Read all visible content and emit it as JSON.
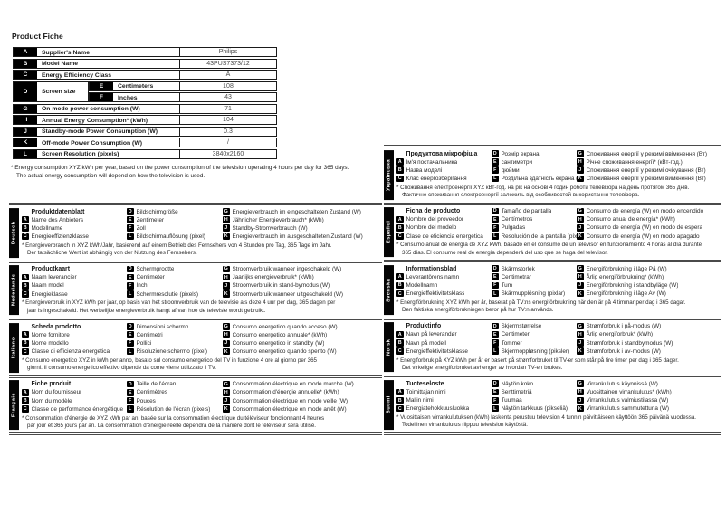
{
  "page": {
    "title": "Product Fiche"
  },
  "fiche_table": {
    "rows": [
      {
        "key": "A",
        "label": "Supplier's Name",
        "value": "Philips"
      },
      {
        "key": "B",
        "label": "Model Name",
        "value": "43PUS7373/12"
      },
      {
        "key": "C",
        "label": "Energy Efficiency Class",
        "value": "A"
      },
      {
        "key": "D",
        "label": "Screen size",
        "sub": [
          {
            "key": "E",
            "label": "Centimeters",
            "value": "108"
          },
          {
            "key": "F",
            "label": "Inches",
            "value": "43"
          }
        ]
      },
      {
        "key": "G",
        "label": "On mode power consumption (W)",
        "value": "71"
      },
      {
        "key": "H",
        "label": "Annual Energy Consumption* (kWh)",
        "value": "104"
      },
      {
        "key": "J",
        "label": "Standby-mode Power Consumption (W)",
        "value": "0.3"
      },
      {
        "key": "K",
        "label": "Off-mode Power Consumption (W)",
        "value": "/"
      },
      {
        "key": "L",
        "label": "Screen Resolution (pixels)",
        "value": "3840x2160"
      }
    ]
  },
  "footnote": {
    "line1": "* Energy consumption XYZ kWh per year, based on the power consumption of the television operating 4 hours per day for 365 days.",
    "line2": "The actual energy consumption will depend on how the television is used."
  },
  "sections": {
    "left": [
      {
        "lang": "Deutsch",
        "title": "Produktdatenblatt",
        "col1": [
          {
            "key": "A",
            "label": "Name des Anbieters"
          },
          {
            "key": "B",
            "label": "Modellname"
          },
          {
            "key": "C",
            "label": "Energieeffizienzklasse"
          }
        ],
        "col2": [
          {
            "key": "D",
            "label": "Bildschirmgröße"
          },
          {
            "key": "E",
            "label": "Zentimeter"
          },
          {
            "key": "F",
            "label": "Zoll"
          },
          {
            "key": "L",
            "label": "Bildschirmauflösung (pixel)"
          }
        ],
        "col3": [
          {
            "key": "G",
            "label": "Energieverbrauch im eingeschalteten Zustand (W)"
          },
          {
            "key": "H",
            "label": "Jährlicher Energieverbrauch* (kWh)"
          },
          {
            "key": "J",
            "label": "Standby-Stromverbrauch (W)"
          },
          {
            "key": "K",
            "label": "Energieverbrauch im ausgeschalteten Zustand (W)"
          }
        ],
        "fn": [
          "* Energieverbrauch in XYZ kWh/Jahr, basierend auf einem Betrieb des Fernsehers von 4 Stunden pro Tag, 365 Tage im Jahr.",
          "Der tatsächliche Wert ist abhängig von der Nutzung des Fernsehers."
        ]
      },
      {
        "lang": "Nederlands",
        "title": "Productkaart",
        "col1": [
          {
            "key": "A",
            "label": "Naam leverancier"
          },
          {
            "key": "B",
            "label": "Naam model"
          },
          {
            "key": "C",
            "label": "Energieklasse"
          }
        ],
        "col2": [
          {
            "key": "D",
            "label": "Schermgrootte"
          },
          {
            "key": "E",
            "label": "Centimeter"
          },
          {
            "key": "F",
            "label": "Inch"
          },
          {
            "key": "L",
            "label": "Schermresolutie (pixels)"
          }
        ],
        "col3": [
          {
            "key": "G",
            "label": "Stroomverbruik wanneer ingeschakeld (W)"
          },
          {
            "key": "H",
            "label": "Jaarlijks energieverbruik* (kWh)"
          },
          {
            "key": "J",
            "label": "Stroomverbruik in stand-bymodus (W)"
          },
          {
            "key": "K",
            "label": "Stroomverbruik wanneer uitgeschakeld (W)"
          }
        ],
        "fn": [
          "* Energieverbruik in XYZ kWh per jaar, op basis van het stroomverbruik van de televisie als deze 4 uur per dag, 365 dagen per",
          "jaar is ingeschakeld. Het werkelijke energieverbruik hangt af van hoe de televisie wordt gebruikt."
        ]
      },
      {
        "lang": "Italiano",
        "title": "Scheda prodotto",
        "col1": [
          {
            "key": "A",
            "label": "Nome fornitore"
          },
          {
            "key": "B",
            "label": "Nome modello"
          },
          {
            "key": "C",
            "label": "Classe di efficienza energetica"
          }
        ],
        "col2": [
          {
            "key": "D",
            "label": "Dimensioni schermo"
          },
          {
            "key": "E",
            "label": "Centimetri"
          },
          {
            "key": "F",
            "label": "Pollici"
          },
          {
            "key": "L",
            "label": "Risoluzione schermo (pixel)"
          }
        ],
        "col3": [
          {
            "key": "G",
            "label": "Consumo energetico quando acceso (W)"
          },
          {
            "key": "H",
            "label": "Consumo energetico annuale* (kWh)"
          },
          {
            "key": "J",
            "label": "Consumo energetico in standby (W)"
          },
          {
            "key": "K",
            "label": "Consumo energetico quando spento (W)"
          }
        ],
        "fn": [
          "* Consumo energetico XYZ in kWh per anno, basato sul consumo energetico del TV in funzione 4 ore al giorno per 365",
          "giorni. Il consumo energetico effettivo dipende da come viene utilizzato il TV."
        ]
      },
      {
        "lang": "Français",
        "title": "Fiche produit",
        "col1": [
          {
            "key": "A",
            "label": "Nom du fournisseur"
          },
          {
            "key": "B",
            "label": "Nom du modèle"
          },
          {
            "key": "C",
            "label": "Classe de performance énergétique"
          }
        ],
        "col2": [
          {
            "key": "D",
            "label": "Taille de l'écran"
          },
          {
            "key": "E",
            "label": "Centimètres"
          },
          {
            "key": "F",
            "label": "Pouces"
          },
          {
            "key": "L",
            "label": "Résolution de l'écran (pixels)"
          }
        ],
        "col3": [
          {
            "key": "G",
            "label": "Consommation électrique en mode marche (W)"
          },
          {
            "key": "H",
            "label": "Consommation d'énergie annuelle* (kWh)"
          },
          {
            "key": "J",
            "label": "Consommation électrique en mode veille (W)"
          },
          {
            "key": "K",
            "label": "Consommation électrique en mode arrêt (W)"
          }
        ],
        "fn": [
          "* Consommation d'énergie de XYZ kWh par an, basée sur la consommation électrique du téléviseur fonctionnant 4 heures",
          "par jour et 365 jours par an. La consommation d'énergie réelle dépendra de la manière dont le téléviseur sera utilisé."
        ]
      }
    ],
    "right": [
      {
        "lang": "Українська",
        "title": "Продуктова мікрофіша",
        "col1": [
          {
            "key": "A",
            "label": "Ім'я постачальника"
          },
          {
            "key": "B",
            "label": "Назва моделі"
          },
          {
            "key": "C",
            "label": "Клас енергозберігання"
          }
        ],
        "col2": [
          {
            "key": "D",
            "label": "Розмір екрана"
          },
          {
            "key": "E",
            "label": "сантиметри"
          },
          {
            "key": "F",
            "label": "дюйми"
          },
          {
            "key": "L",
            "label": "Роздільна здатність екрана (піксел)"
          }
        ],
        "col3": [
          {
            "key": "G",
            "label": "Споживання енергії у режимі ввімкнення (Вт)"
          },
          {
            "key": "H",
            "label": "Річне споживання енергії* (кВт-год.)"
          },
          {
            "key": "J",
            "label": "Споживання енергії у режимі очікування (Вт)"
          },
          {
            "key": "K",
            "label": "Споживання енергії у режимі вимкнення (Вт)"
          }
        ],
        "fn": [
          "* Споживання електроенергії XYZ кВт-год. на рік на основі 4 годин роботи телевізора на день протягом 365 днів.",
          "Фактичне споживання електроенергії залежить від особливостей використання телевізора."
        ]
      },
      {
        "lang": "Español",
        "title": "Ficha de producto",
        "col1": [
          {
            "key": "A",
            "label": "Nombre del proveedor"
          },
          {
            "key": "B",
            "label": "Nombre del modelo"
          },
          {
            "key": "C",
            "label": "Clase de eficiencia energética"
          }
        ],
        "col2": [
          {
            "key": "D",
            "label": "Tamaño de pantalla"
          },
          {
            "key": "E",
            "label": "Centímetros"
          },
          {
            "key": "F",
            "label": "Pulgadas"
          },
          {
            "key": "L",
            "label": "Resolución de la pantalla (píxeles)"
          }
        ],
        "col3": [
          {
            "key": "G",
            "label": "Consumo de energía (W) en modo encendido"
          },
          {
            "key": "H",
            "label": "Consumo anual de energía* (kWh)"
          },
          {
            "key": "J",
            "label": "Consumo de energía (W) en modo de espera"
          },
          {
            "key": "K",
            "label": "Consumo de energía (W) en modo apagado"
          }
        ],
        "fn": [
          "* Consumo anual de energía de XYZ kWh, basado en el consumo de un televisor en funcionamiento 4 horas al día durante",
          "365 días. El consumo real de energía dependerá del uso que se haga del televisor."
        ]
      },
      {
        "lang": "Svenska",
        "title": "Informationsblad",
        "col1": [
          {
            "key": "A",
            "label": "Leverantörens namn"
          },
          {
            "key": "B",
            "label": "Modellnamn"
          },
          {
            "key": "C",
            "label": "Energieffektivitetsklass"
          }
        ],
        "col2": [
          {
            "key": "D",
            "label": "Skärmstorlek"
          },
          {
            "key": "E",
            "label": "Centimetrar"
          },
          {
            "key": "F",
            "label": "Tum"
          },
          {
            "key": "L",
            "label": "Skärmupplösning (pixlar)"
          }
        ],
        "col3": [
          {
            "key": "G",
            "label": "Energiförbrukning i läge På (W)"
          },
          {
            "key": "H",
            "label": "Årlig energiförbrukning* (kWh)"
          },
          {
            "key": "J",
            "label": "Energiförbrukning i standbyläge (W)"
          },
          {
            "key": "K",
            "label": "Energiförbrukning i läge Av (W)"
          }
        ],
        "fn": [
          "* Energiförbrukning XYZ kWh per år, baserat på TV:ns energiförbrukning när den är på 4 timmar per dag i 365 dagar.",
          "Den faktiska energiförbrukningen beror på hur TV:n används."
        ]
      },
      {
        "lang": "Norsk",
        "title": "Produktinfo",
        "col1": [
          {
            "key": "A",
            "label": "Navn på leverandør"
          },
          {
            "key": "B",
            "label": "Navn på modell"
          },
          {
            "key": "C",
            "label": "Energieffektivitetsklasse"
          }
        ],
        "col2": [
          {
            "key": "D",
            "label": "Skjermstørrelse"
          },
          {
            "key": "E",
            "label": "Centimeter"
          },
          {
            "key": "F",
            "label": "Tommer"
          },
          {
            "key": "L",
            "label": "Skjermoppløsning (piksler)"
          }
        ],
        "col3": [
          {
            "key": "G",
            "label": "Strømforbruk i på-modus (W)"
          },
          {
            "key": "H",
            "label": "Årlig energiforbruk* (kWh)"
          },
          {
            "key": "J",
            "label": "Strømforbruk i standbymodus (W)"
          },
          {
            "key": "K",
            "label": "Strømforbruk i av-modus (W)"
          }
        ],
        "fn": [
          "* Energiforbruk på XYZ kWh per år er basert på strømforbruket til TV-er som står på fire timer per dag i 365 dager.",
          "Det virkelige energiforbruket avhenger av hvordan TV-en brukes."
        ]
      },
      {
        "lang": "Suomi",
        "title": "Tuoteseloste",
        "col1": [
          {
            "key": "A",
            "label": "Toimittajan nimi"
          },
          {
            "key": "B",
            "label": "Mallin nimi"
          },
          {
            "key": "C",
            "label": "Energiatehokkuusluokka"
          }
        ],
        "col2": [
          {
            "key": "D",
            "label": "Näytön koko"
          },
          {
            "key": "E",
            "label": "Senttimetriä"
          },
          {
            "key": "F",
            "label": "Tuumaa"
          },
          {
            "key": "L",
            "label": "Näytön tarkkuus (pikseliä)"
          }
        ],
        "col3": [
          {
            "key": "G",
            "label": "Virrankulutus käynnissä (W)"
          },
          {
            "key": "H",
            "label": "Vuosittainen virrankulutus* (kWh)"
          },
          {
            "key": "J",
            "label": "Virrankulutus valmiustilassa (W)"
          },
          {
            "key": "K",
            "label": "Virrankulutus sammutettuna (W)"
          }
        ],
        "fn": [
          "* Vuosittaisen virrankulutuksen (kWh) laskenta perustuu television 4 tunnin päivittäiseen käyttöön 365 päivänä vuodessa.",
          "Todellinen virrankulutus riippuu television käytöstä."
        ]
      }
    ]
  }
}
